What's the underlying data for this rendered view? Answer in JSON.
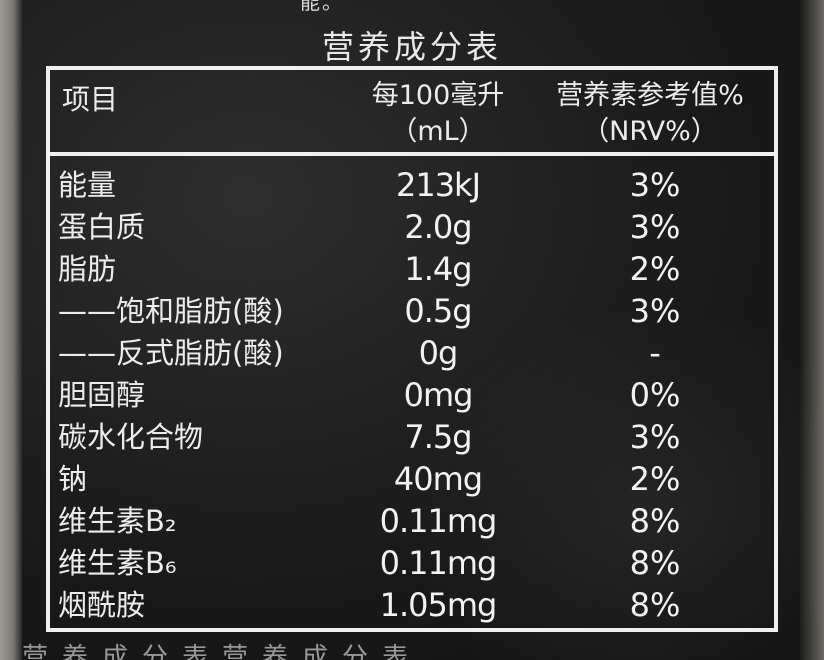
{
  "top_fragment": "能。",
  "title": "营养成分表",
  "header": {
    "item": "项目",
    "per100_line1": "每100毫升",
    "per100_line2": "（mL）",
    "nrv_line1": "营养素参考值%",
    "nrv_line2": "（NRV%）"
  },
  "rows": [
    {
      "name": "能量",
      "value": "213kJ",
      "nrv": "3%"
    },
    {
      "name": "蛋白质",
      "value": "2.0g",
      "nrv": "3%"
    },
    {
      "name": "脂肪",
      "value": "1.4g",
      "nrv": "2%"
    },
    {
      "name": "——饱和脂肪(酸)",
      "value": "0.5g",
      "nrv": "3%"
    },
    {
      "name": "——反式脂肪(酸)",
      "value": "0g",
      "nrv": "-"
    },
    {
      "name": "胆固醇",
      "value": "0mg",
      "nrv": "0%"
    },
    {
      "name": "碳水化合物",
      "value": "7.5g",
      "nrv": "3%"
    },
    {
      "name": "钠",
      "value": "40mg",
      "nrv": "2%"
    },
    {
      "name": "维生素B₂",
      "value": "0.11mg",
      "nrv": "8%"
    },
    {
      "name": "维生素B₆",
      "value": "0.11mg",
      "nrv": "8%"
    },
    {
      "name": "烟酰胺",
      "value": "1.05mg",
      "nrv": "8%"
    }
  ],
  "bottom_fragment": "营养成分表营养成分表"
}
